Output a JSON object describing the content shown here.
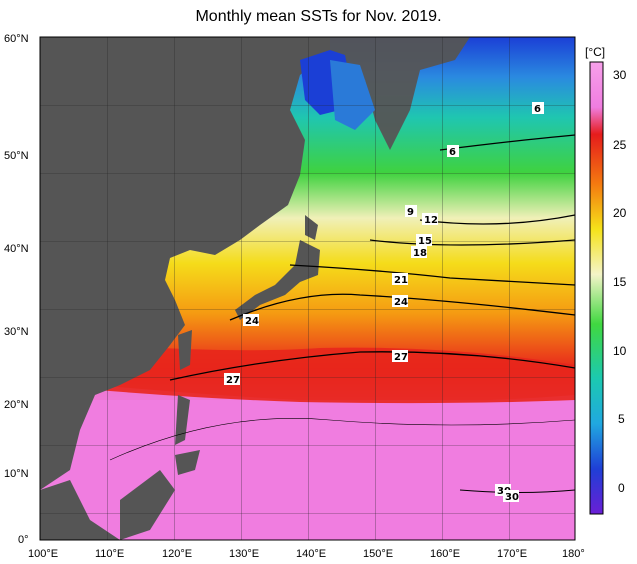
{
  "title": "Monthly mean SSTs for Nov. 2019.",
  "axes": {
    "lat_labels": [
      "60°N",
      "50°N",
      "40°N",
      "30°N",
      "20°N",
      "10°N",
      "0°"
    ],
    "lon_labels": [
      "100°E",
      "110°E",
      "120°E",
      "130°E",
      "140°E",
      "150°E",
      "160°E",
      "170°E",
      "180°"
    ]
  },
  "colorbar": {
    "unit": "[°C]",
    "ticks": [
      "30",
      "25",
      "20",
      "15",
      "10",
      "5",
      "0"
    ]
  },
  "contour_labels": [
    "6",
    "6",
    "9",
    "12",
    "15",
    "18",
    "21",
    "24",
    "24",
    "27",
    "27",
    "30",
    "30"
  ],
  "colors": {
    "land": "#555555",
    "warm_pink": "#f07de0",
    "red": "#e8261c",
    "orange": "#f47a10",
    "yellow": "#f5dc1a",
    "pale": "#f0f0b8",
    "green": "#3fd23f",
    "teal": "#1fbfa0",
    "blue": "#1a5ad8"
  }
}
